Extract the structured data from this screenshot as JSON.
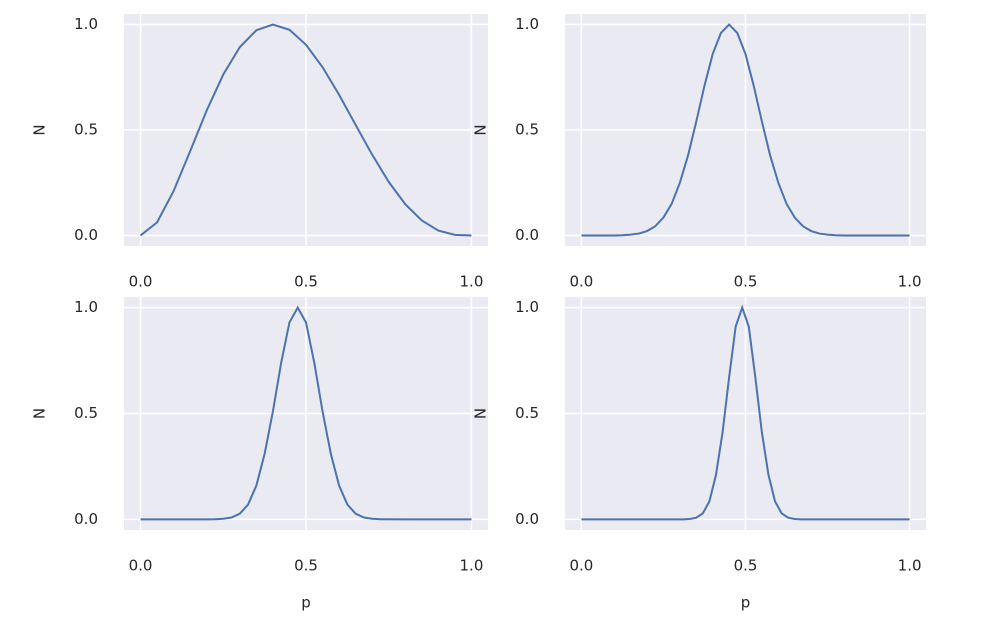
{
  "chart_data": [
    {
      "type": "line",
      "ylabel": "N",
      "color": "#4c72b0",
      "x": [
        0,
        0.05,
        0.1,
        0.15,
        0.2,
        0.25,
        0.3,
        0.35,
        0.4,
        0.45,
        0.5,
        0.55,
        0.6,
        0.65,
        0.7,
        0.75,
        0.8,
        0.85,
        0.9,
        0.95,
        1
      ],
      "values": [
        0,
        0.062,
        0.211,
        0.4,
        0.593,
        0.763,
        0.893,
        0.973,
        1,
        0.975,
        0.904,
        0.798,
        0.667,
        0.524,
        0.383,
        0.254,
        0.148,
        0.071,
        0.023,
        0.003,
        0
      ],
      "xlim": [
        -0.05,
        1.05
      ],
      "ylim": [
        -0.05,
        1.05
      ],
      "xticks": [
        {
          "value": 0,
          "label": "0.0"
        },
        {
          "value": 0.5,
          "label": "0.5"
        },
        {
          "value": 1,
          "label": "1.0"
        }
      ],
      "yticks": [
        {
          "value": 0,
          "label": "0.0"
        },
        {
          "value": 0.5,
          "label": "0.5"
        },
        {
          "value": 1,
          "label": "1.0"
        }
      ],
      "grid": true
    },
    {
      "type": "line",
      "ylabel": "N",
      "color": "#4c72b0",
      "x": [
        0,
        0.025,
        0.05,
        0.075,
        0.1,
        0.125,
        0.15,
        0.175,
        0.2,
        0.225,
        0.25,
        0.275,
        0.3,
        0.325,
        0.35,
        0.375,
        0.4,
        0.425,
        0.45,
        0.475,
        0.5,
        0.525,
        0.55,
        0.575,
        0.6,
        0.625,
        0.65,
        0.675,
        0.7,
        0.725,
        0.75,
        0.775,
        0.8,
        0.9,
        1
      ],
      "values": [
        0,
        0,
        0,
        0,
        0,
        0.001,
        0.004,
        0.009,
        0.021,
        0.044,
        0.085,
        0.15,
        0.25,
        0.38,
        0.54,
        0.71,
        0.86,
        0.96,
        1,
        0.96,
        0.86,
        0.71,
        0.54,
        0.38,
        0.25,
        0.15,
        0.085,
        0.044,
        0.021,
        0.009,
        0.004,
        0.001,
        0,
        0,
        0
      ],
      "xlim": [
        -0.05,
        1.05
      ],
      "ylim": [
        -0.05,
        1.05
      ],
      "xticks": [
        {
          "value": 0,
          "label": "0.0"
        },
        {
          "value": 0.5,
          "label": "0.5"
        },
        {
          "value": 1,
          "label": "1.0"
        }
      ],
      "yticks": [
        {
          "value": 0,
          "label": "0.0"
        },
        {
          "value": 0.5,
          "label": "0.5"
        },
        {
          "value": 1,
          "label": "1.0"
        }
      ],
      "grid": true
    },
    {
      "type": "line",
      "xlabel": "p",
      "ylabel": "N",
      "color": "#4c72b0",
      "x": [
        0,
        0.1,
        0.2,
        0.225,
        0.25,
        0.275,
        0.3,
        0.325,
        0.35,
        0.375,
        0.4,
        0.425,
        0.45,
        0.475,
        0.5,
        0.525,
        0.55,
        0.575,
        0.6,
        0.625,
        0.65,
        0.675,
        0.7,
        0.725,
        0.8,
        0.9,
        1
      ],
      "values": [
        0,
        0,
        0,
        0.001,
        0.003,
        0.009,
        0.027,
        0.07,
        0.16,
        0.31,
        0.51,
        0.74,
        0.93,
        1,
        0.93,
        0.74,
        0.51,
        0.31,
        0.16,
        0.07,
        0.027,
        0.009,
        0.003,
        0.001,
        0,
        0,
        0
      ],
      "xlim": [
        -0.05,
        1.05
      ],
      "ylim": [
        -0.05,
        1.05
      ],
      "xticks": [
        {
          "value": 0,
          "label": "0.0"
        },
        {
          "value": 0.5,
          "label": "0.5"
        },
        {
          "value": 1,
          "label": "1.0"
        }
      ],
      "yticks": [
        {
          "value": 0,
          "label": "0.0"
        },
        {
          "value": 0.5,
          "label": "0.5"
        },
        {
          "value": 1,
          "label": "1.0"
        }
      ],
      "grid": true
    },
    {
      "type": "line",
      "xlabel": "p",
      "ylabel": "N",
      "color": "#4c72b0",
      "x": [
        0,
        0.1,
        0.2,
        0.3,
        0.31,
        0.33,
        0.35,
        0.37,
        0.39,
        0.41,
        0.43,
        0.45,
        0.47,
        0.49,
        0.51,
        0.53,
        0.55,
        0.57,
        0.59,
        0.61,
        0.63,
        0.65,
        0.67,
        0.7,
        0.8,
        0.9,
        1
      ],
      "values": [
        0,
        0,
        0,
        0,
        0,
        0.002,
        0.008,
        0.029,
        0.085,
        0.21,
        0.41,
        0.67,
        0.91,
        1,
        0.91,
        0.67,
        0.41,
        0.21,
        0.085,
        0.029,
        0.008,
        0.002,
        0,
        0,
        0,
        0,
        0
      ],
      "xlim": [
        -0.05,
        1.05
      ],
      "ylim": [
        -0.05,
        1.05
      ],
      "xticks": [
        {
          "value": 0,
          "label": "0.0"
        },
        {
          "value": 0.5,
          "label": "0.5"
        },
        {
          "value": 1,
          "label": "1.0"
        }
      ],
      "yticks": [
        {
          "value": 0,
          "label": "0.0"
        },
        {
          "value": 0.5,
          "label": "0.5"
        },
        {
          "value": 1,
          "label": "1.0"
        }
      ],
      "grid": true
    }
  ]
}
